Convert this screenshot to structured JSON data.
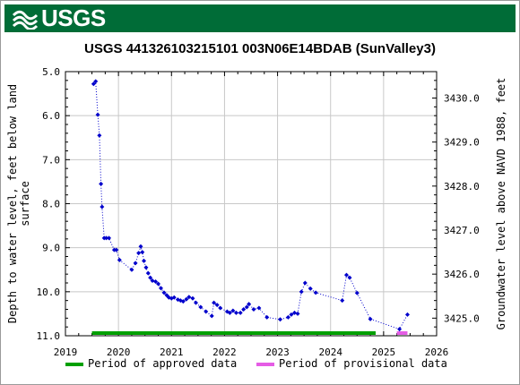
{
  "logo": {
    "text": "USGS"
  },
  "chart_data": {
    "type": "scatter",
    "title": "USGS 441326103215101 003N06E14BDAB (SunValley3)",
    "ylabel_lines": [
      "Depth to water level, feet below land",
      "surface"
    ],
    "y2label": "Groundwater level above NAVD 1988, feet",
    "xlim": [
      2019,
      2026
    ],
    "ylim": [
      5.0,
      11.0
    ],
    "y_inverted": true,
    "y2lim": [
      3430.6,
      3424.6
    ],
    "x_ticks": [
      2019,
      2020,
      2021,
      2022,
      2023,
      2024,
      2025,
      2026
    ],
    "y_ticks": [
      5.0,
      6.0,
      7.0,
      8.0,
      9.0,
      10.0,
      11.0
    ],
    "y_tick_labels": [
      "5.0",
      "6.0",
      "7.0",
      "8.0",
      "9.0",
      "10.0",
      "11.0"
    ],
    "y2_ticks": [
      3430.0,
      3429.0,
      3428.0,
      3427.0,
      3426.0,
      3425.0
    ],
    "y2_tick_labels": [
      "3430.0",
      "3429.0",
      "3428.0",
      "3427.0",
      "3426.0",
      "3425.0"
    ],
    "grid": true,
    "series": [
      {
        "color": "#0000cc",
        "x": [
          2019.53,
          2019.57,
          2019.61,
          2019.64,
          2019.67,
          2019.69,
          2019.73,
          2019.77,
          2019.82,
          2019.92,
          2019.96,
          2020.02,
          2020.25,
          2020.32,
          2020.38,
          2020.42,
          2020.45,
          2020.48,
          2020.52,
          2020.56,
          2020.6,
          2020.64,
          2020.7,
          2020.75,
          2020.8,
          2020.86,
          2020.91,
          2020.95,
          2021.0,
          2021.05,
          2021.12,
          2021.17,
          2021.22,
          2021.28,
          2021.33,
          2021.4,
          2021.46,
          2021.55,
          2021.65,
          2021.76,
          2021.8,
          2021.86,
          2021.92,
          2022.05,
          2022.1,
          2022.16,
          2022.22,
          2022.3,
          2022.36,
          2022.42,
          2022.46,
          2022.55,
          2022.65,
          2022.8,
          2023.05,
          2023.2,
          2023.26,
          2023.32,
          2023.38,
          2023.45,
          2023.52,
          2023.62,
          2023.72,
          2024.22,
          2024.3,
          2024.36,
          2024.5,
          2024.75,
          2025.3,
          2025.45
        ],
        "y": [
          5.28,
          5.22,
          5.98,
          6.45,
          7.55,
          8.07,
          8.78,
          8.78,
          8.78,
          9.05,
          9.05,
          9.28,
          9.5,
          9.35,
          9.12,
          8.97,
          9.1,
          9.3,
          9.45,
          9.58,
          9.68,
          9.75,
          9.77,
          9.82,
          9.92,
          10.02,
          10.08,
          10.13,
          10.15,
          10.13,
          10.18,
          10.2,
          10.22,
          10.17,
          10.12,
          10.15,
          10.25,
          10.35,
          10.45,
          10.55,
          10.25,
          10.3,
          10.37,
          10.45,
          10.48,
          10.43,
          10.48,
          10.48,
          10.4,
          10.35,
          10.28,
          10.4,
          10.37,
          10.58,
          10.63,
          10.58,
          10.52,
          10.48,
          10.5,
          10.0,
          9.8,
          9.93,
          10.02,
          10.2,
          9.62,
          9.68,
          10.03,
          10.62,
          10.85,
          10.52
        ]
      }
    ],
    "periods": [
      {
        "label": "Period of approved data",
        "start": 2019.5,
        "end": 2024.85,
        "color": "#00a000"
      },
      {
        "label": "Period of provisional data",
        "start": 2025.25,
        "end": 2025.45,
        "color": "#e55ce5"
      }
    ]
  }
}
